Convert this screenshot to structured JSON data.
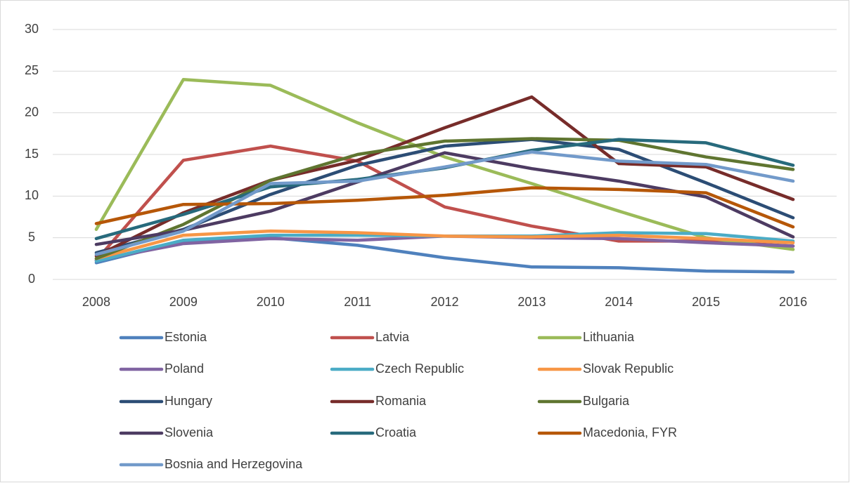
{
  "chart_data": {
    "type": "line",
    "categories": [
      "2008",
      "2009",
      "2010",
      "2011",
      "2012",
      "2013",
      "2014",
      "2015",
      "2016"
    ],
    "ylim": [
      0,
      30
    ],
    "yticks": [
      0,
      5,
      10,
      15,
      20,
      25,
      30
    ],
    "grid": true,
    "legend": "bottom",
    "series": [
      {
        "name": "Estonia",
        "color": "#4f81bd",
        "values": [
          2.0,
          4.6,
          5.0,
          4.1,
          2.6,
          1.5,
          1.4,
          1.0,
          0.9
        ]
      },
      {
        "name": "Latvia",
        "color": "#c0504d",
        "values": [
          2.3,
          14.3,
          16.0,
          14.2,
          8.7,
          6.4,
          4.6,
          4.6,
          4.0
        ]
      },
      {
        "name": "Lithuania",
        "color": "#9bbb59",
        "values": [
          6.0,
          24.0,
          23.3,
          18.8,
          14.7,
          11.5,
          8.2,
          5.0,
          3.6
        ]
      },
      {
        "name": "Poland",
        "color": "#8064a2",
        "values": [
          2.3,
          4.3,
          4.9,
          4.7,
          5.2,
          5.0,
          4.9,
          4.4,
          4.0
        ]
      },
      {
        "name": "Czech Republic",
        "color": "#4bacc6",
        "values": [
          2.2,
          4.7,
          5.3,
          5.3,
          5.2,
          5.2,
          5.6,
          5.5,
          4.6
        ]
      },
      {
        "name": "Slovak Republic",
        "color": "#f79646",
        "values": [
          2.5,
          5.3,
          5.8,
          5.6,
          5.2,
          5.1,
          5.3,
          4.9,
          4.4
        ]
      },
      {
        "name": "Hungary",
        "color": "#2c4d75",
        "values": [
          3.2,
          6.0,
          10.2,
          13.7,
          16.0,
          16.8,
          15.6,
          11.6,
          7.4
        ]
      },
      {
        "name": "Romania",
        "color": "#772c2a",
        "values": [
          2.8,
          8.0,
          11.9,
          14.3,
          18.2,
          21.9,
          13.9,
          13.5,
          9.6
        ]
      },
      {
        "name": "Bulgaria",
        "color": "#5f7530",
        "values": [
          2.5,
          6.6,
          11.9,
          15.0,
          16.6,
          16.9,
          16.7,
          14.7,
          13.2
        ]
      },
      {
        "name": "Slovenia",
        "color": "#4d3b62",
        "values": [
          4.2,
          5.9,
          8.2,
          11.7,
          15.2,
          13.3,
          11.8,
          9.9,
          5.1
        ]
      },
      {
        "name": "Croatia",
        "color": "#276a7c",
        "values": [
          4.9,
          7.8,
          11.1,
          12.0,
          13.4,
          15.5,
          16.8,
          16.4,
          13.7
        ]
      },
      {
        "name": "Macedonia, FYR",
        "color": "#b65708",
        "values": [
          6.7,
          9.0,
          9.1,
          9.5,
          10.1,
          11.0,
          10.8,
          10.4,
          6.3
        ]
      },
      {
        "name": "Bosnia and Herzegovina",
        "color": "#729aca",
        "values": [
          3.0,
          5.8,
          11.5,
          11.8,
          13.5,
          15.3,
          14.2,
          13.8,
          11.8
        ]
      }
    ]
  }
}
